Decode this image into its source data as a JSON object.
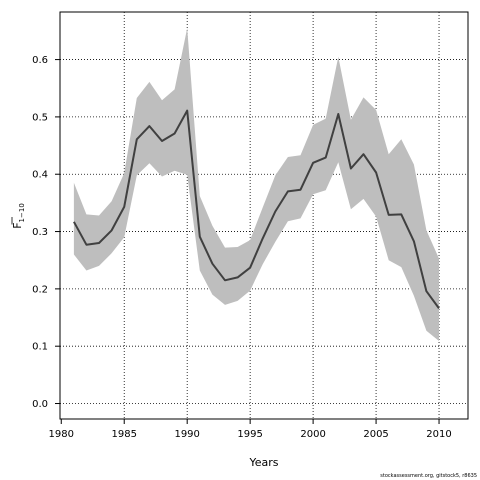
{
  "chart_data": {
    "type": "line",
    "title": "",
    "xlabel": "Years",
    "ylabel_main": "F",
    "ylabel_sub": "1−10",
    "xlim": [
      1979.9,
      2012.3
    ],
    "ylim": [
      -0.027,
      0.683
    ],
    "xticks": [
      1980,
      1985,
      1990,
      1995,
      2000,
      2005,
      2010
    ],
    "yticks": [
      0.0,
      0.1,
      0.2,
      0.3,
      0.4,
      0.5,
      0.6
    ],
    "grid": true,
    "x": [
      1981,
      1982,
      1983,
      1984,
      1985,
      1986,
      1987,
      1988,
      1989,
      1990,
      1991,
      1992,
      1993,
      1994,
      1995,
      1996,
      1997,
      1998,
      1999,
      2000,
      2001,
      2002,
      2003,
      2004,
      2005,
      2006,
      2007,
      2008,
      2009,
      2010
    ],
    "series": [
      {
        "values": [
          0.317,
          0.277,
          0.28,
          0.302,
          0.343,
          0.461,
          0.484,
          0.458,
          0.471,
          0.511,
          0.291,
          0.244,
          0.215,
          0.22,
          0.237,
          0.288,
          0.335,
          0.37,
          0.373,
          0.42,
          0.429,
          0.505,
          0.41,
          0.435,
          0.403,
          0.329,
          0.33,
          0.283,
          0.196,
          0.166
        ],
        "upper": [
          0.385,
          0.33,
          0.328,
          0.353,
          0.402,
          0.533,
          0.561,
          0.529,
          0.548,
          0.655,
          0.362,
          0.31,
          0.272,
          0.273,
          0.285,
          0.342,
          0.398,
          0.43,
          0.433,
          0.486,
          0.497,
          0.605,
          0.495,
          0.534,
          0.512,
          0.435,
          0.461,
          0.417,
          0.302,
          0.253
        ],
        "lower": [
          0.26,
          0.232,
          0.24,
          0.262,
          0.29,
          0.398,
          0.419,
          0.396,
          0.406,
          0.399,
          0.232,
          0.19,
          0.172,
          0.179,
          0.197,
          0.243,
          0.282,
          0.318,
          0.323,
          0.365,
          0.372,
          0.421,
          0.339,
          0.357,
          0.326,
          0.25,
          0.238,
          0.188,
          0.127,
          0.109
        ],
        "line_color": "#404040",
        "band_color": "#bebebe"
      }
    ]
  },
  "credit": "stockassessment.org, gitstock5, r8635"
}
